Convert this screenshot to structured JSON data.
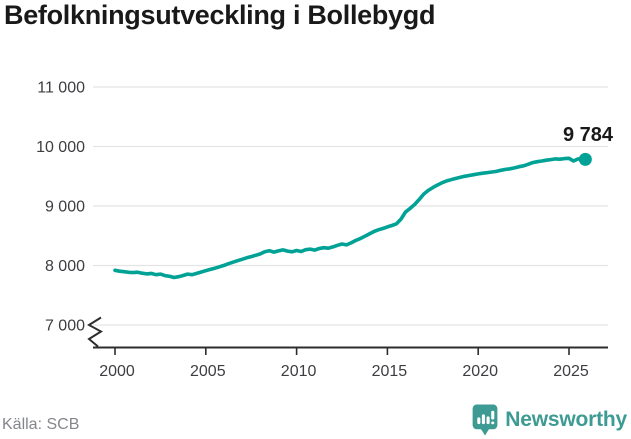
{
  "header": {
    "title": "Befolkningsutveckling i Bollebygd"
  },
  "footer": {
    "source": "Källa: SCB",
    "brand": "Newsworthy"
  },
  "colors": {
    "line": "#00a296",
    "brand_teal": "#3e9b93",
    "grid": "#e4e4e4",
    "axis": "#2d2d2d",
    "title_text": "#191919",
    "tick_text": "#3e3e42",
    "source_text": "#84868c",
    "background": "#ffffff"
  },
  "chart_data": {
    "type": "line",
    "title": "Befolkningsutveckling i Bollebygd",
    "source": "Källa: SCB",
    "x_label": "",
    "y_label": "",
    "grid": "horizontal",
    "legend": "none",
    "axis_break_at_bottom": true,
    "xlim": [
      2000,
      2026
    ],
    "ylim": [
      7000,
      11000
    ],
    "x_axis": {
      "years": [
        2000,
        2005,
        2010,
        2015,
        2020,
        2025
      ],
      "labels": [
        "2000",
        "2005",
        "2010",
        "2015",
        "2020",
        "2025"
      ]
    },
    "y_axis": {
      "values": [
        11000,
        10000,
        9000,
        8000,
        7000
      ],
      "labels": [
        "11 000",
        "10 000",
        "9 000",
        "8 000",
        "7 000"
      ]
    },
    "series": [
      {
        "name": "Befolkning",
        "x": [
          2000,
          2000.25,
          2000.5,
          2000.75,
          2001,
          2001.25,
          2001.5,
          2001.75,
          2002,
          2002.25,
          2002.5,
          2002.75,
          2003,
          2003.25,
          2003.5,
          2003.75,
          2004,
          2004.25,
          2004.5,
          2004.75,
          2005,
          2005.25,
          2005.5,
          2005.75,
          2006,
          2006.25,
          2006.5,
          2006.75,
          2007,
          2007.25,
          2007.5,
          2007.75,
          2008,
          2008.25,
          2008.5,
          2008.75,
          2009,
          2009.25,
          2009.5,
          2009.75,
          2010,
          2010.25,
          2010.5,
          2010.75,
          2011,
          2011.25,
          2011.5,
          2011.75,
          2012,
          2012.25,
          2012.5,
          2012.75,
          2013,
          2013.25,
          2013.5,
          2013.75,
          2014,
          2014.25,
          2014.5,
          2014.75,
          2015,
          2015.25,
          2015.5,
          2015.75,
          2016,
          2016.25,
          2016.5,
          2016.75,
          2017,
          2017.25,
          2017.5,
          2017.75,
          2018,
          2018.25,
          2018.5,
          2018.75,
          2019,
          2019.25,
          2019.5,
          2019.75,
          2020,
          2020.25,
          2020.5,
          2020.75,
          2021,
          2021.25,
          2021.5,
          2021.75,
          2022,
          2022.25,
          2022.5,
          2022.75,
          2023,
          2023.25,
          2023.5,
          2023.75,
          2024,
          2024.25,
          2024.5,
          2024.75,
          2025,
          2025.25,
          2025.5,
          2025.75,
          2025.9
        ],
        "values": [
          7920,
          7905,
          7895,
          7885,
          7880,
          7888,
          7870,
          7858,
          7868,
          7845,
          7855,
          7830,
          7818,
          7798,
          7812,
          7832,
          7855,
          7845,
          7868,
          7890,
          7912,
          7935,
          7955,
          7978,
          8002,
          8030,
          8055,
          8080,
          8105,
          8130,
          8150,
          8172,
          8195,
          8232,
          8248,
          8225,
          8245,
          8262,
          8242,
          8230,
          8252,
          8236,
          8265,
          8276,
          8258,
          8285,
          8300,
          8290,
          8312,
          8340,
          8362,
          8346,
          8380,
          8420,
          8452,
          8490,
          8530,
          8570,
          8600,
          8622,
          8648,
          8672,
          8700,
          8780,
          8900,
          8960,
          9025,
          9110,
          9200,
          9262,
          9310,
          9352,
          9390,
          9420,
          9442,
          9462,
          9480,
          9500,
          9512,
          9526,
          9540,
          9552,
          9562,
          9572,
          9582,
          9600,
          9615,
          9626,
          9640,
          9660,
          9676,
          9700,
          9730,
          9745,
          9756,
          9770,
          9780,
          9792,
          9786,
          9796,
          9802,
          9756,
          9792,
          9780,
          9784
        ]
      }
    ],
    "end_point": {
      "x": 2025.9,
      "value": 9784,
      "label": "9 784"
    }
  }
}
